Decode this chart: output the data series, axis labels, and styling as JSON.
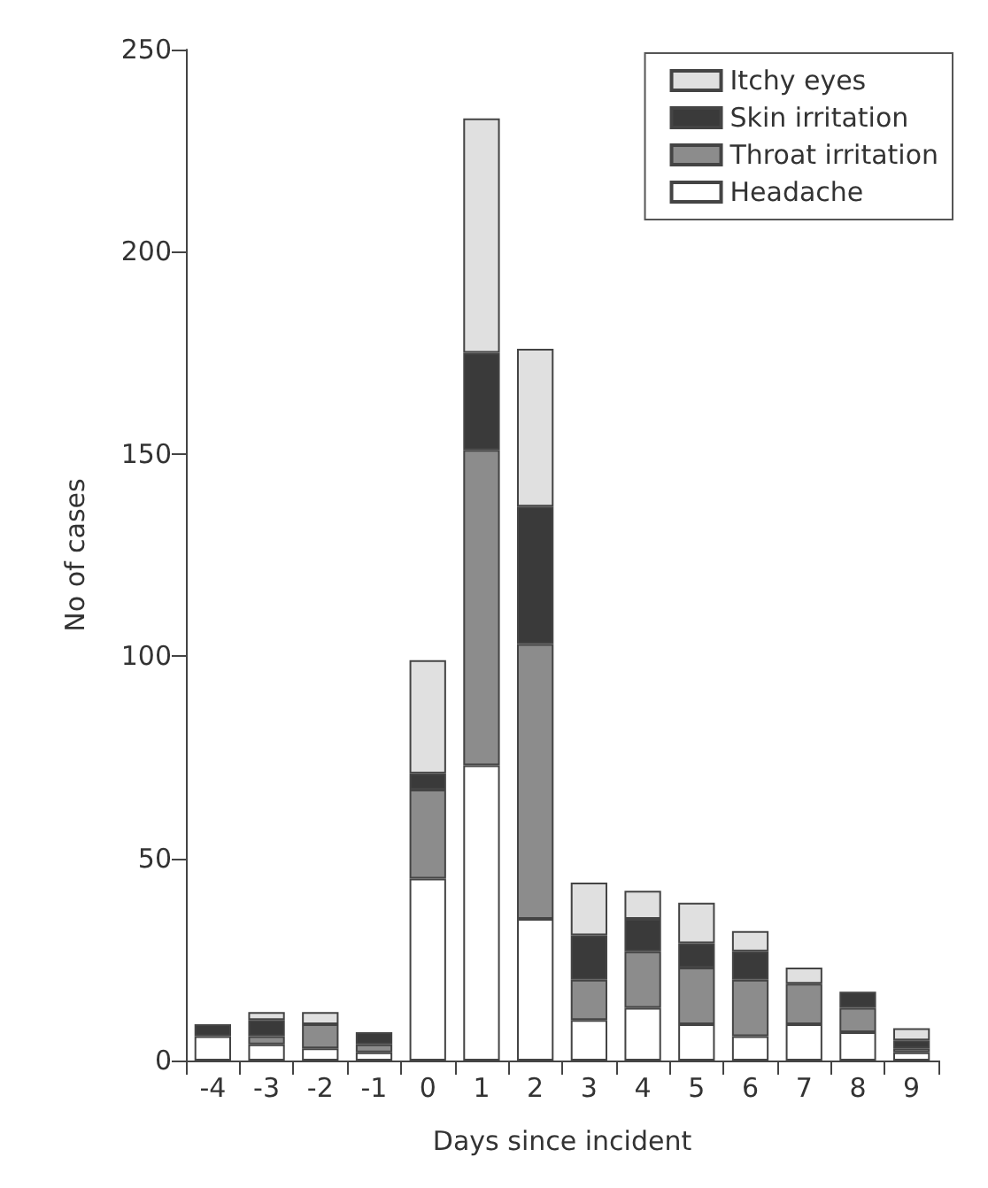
{
  "chart_data": {
    "type": "bar",
    "stacked": true,
    "xlabel": "Days since incident",
    "ylabel": "No of cases",
    "categories": [
      "-4",
      "-3",
      "-2",
      "-1",
      "0",
      "1",
      "2",
      "3",
      "4",
      "5",
      "6",
      "7",
      "8",
      "9"
    ],
    "series": [
      {
        "name": "Headache",
        "color": "#ffffff",
        "values": [
          6,
          4,
          3,
          2,
          45,
          73,
          35,
          10,
          13,
          9,
          6,
          9,
          7,
          2
        ]
      },
      {
        "name": "Throat irritation",
        "color": "#8c8c8c",
        "values": [
          null,
          2,
          6,
          2,
          22,
          78,
          68,
          10,
          14,
          14,
          14,
          10,
          6,
          1
        ]
      },
      {
        "name": "Skin irritation",
        "color": "#3a3a3a",
        "values": [
          3,
          4,
          null,
          3,
          4,
          24,
          34,
          11,
          8,
          6,
          7,
          null,
          4,
          2
        ]
      },
      {
        "name": "Itchy eyes",
        "color": "#e0e0e0",
        "values": [
          null,
          2,
          3,
          null,
          28,
          58,
          39,
          13,
          7,
          10,
          5,
          4,
          null,
          3
        ]
      }
    ],
    "ylim": [
      0,
      250
    ],
    "yticks": [
      0,
      50,
      100,
      150,
      200,
      250
    ],
    "grid": false,
    "legend": "top right"
  }
}
